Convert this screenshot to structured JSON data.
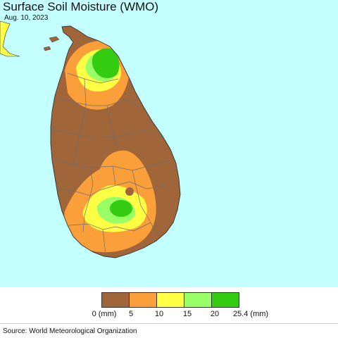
{
  "title": "Surface Soil Moisture (WMO)",
  "date": "Aug. 10, 2023",
  "colors": {
    "sea": "#c4ffff",
    "dry": "#a0663a",
    "orange": "#fb9f3a",
    "yellow": "#ffff44",
    "light_green": "#99ff66",
    "green": "#33cc11",
    "neighbor_land": "#ffff44",
    "district_lines": "#6e6e6e"
  },
  "legend": {
    "swatches": [
      {
        "color": "#a0663a",
        "range": "0 - 5"
      },
      {
        "color": "#fb9f3a",
        "range": "5 - 10"
      },
      {
        "color": "#ffff44",
        "range": "10 - 15"
      },
      {
        "color": "#99ff66",
        "range": "15 - 20"
      },
      {
        "color": "#33cc11",
        "range": "20 - 25.4"
      }
    ],
    "labels": [
      "0 (mm)",
      "5",
      "10",
      "15",
      "20",
      "25.4 (mm)"
    ]
  },
  "source": "Source: World Meteorological Organization"
}
